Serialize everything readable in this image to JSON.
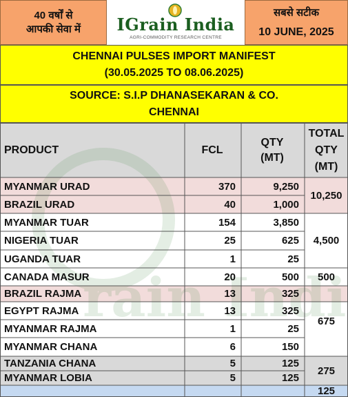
{
  "header": {
    "left_line1": "40 वर्षों से",
    "left_line2": "आपकी सेवा में",
    "logo_title": "IGrain India",
    "logo_subtitle": "AGRI-COMMODITY RESEARCH CENTRE",
    "right_line1": "सबसे सटीक",
    "date": "10 JUNE, 2025"
  },
  "title": {
    "line1": "CHENNAI PULSES IMPORT MANIFEST",
    "line2": "(30.05.2025 TO 08.06.2025)"
  },
  "source": {
    "line1": "SOURCE: S.I.P DHANASEKARAN & CO.",
    "line2": "CHENNAI"
  },
  "table": {
    "headers": {
      "product": "PRODUCT",
      "fcl": "FCL",
      "qty_line1": "QTY",
      "qty_line2": "(MT)",
      "total_line1": "TOTAL",
      "total_line2": "QTY",
      "total_line3": "(MT)"
    },
    "rows": [
      {
        "product": "MYANMAR URAD",
        "fcl": "370",
        "qty": "9,250"
      },
      {
        "product": "BRAZIL URAD",
        "fcl": "40",
        "qty": "1,000"
      },
      {
        "product": "MYANMAR TUAR",
        "fcl": "154",
        "qty": "3,850"
      },
      {
        "product": "NIGERIA TUAR",
        "fcl": "25",
        "qty": "625"
      },
      {
        "product": "UGANDA TUAR",
        "fcl": "1",
        "qty": "25"
      },
      {
        "product": "CANADA MASUR",
        "fcl": "20",
        "qty": "500"
      },
      {
        "product": "BRAZIL RAJMA",
        "fcl": "13",
        "qty": "325"
      },
      {
        "product": "EGYPT RAJMA",
        "fcl": "13",
        "qty": "325"
      },
      {
        "product": "MYANMAR RAJMA",
        "fcl": "1",
        "qty": "25"
      },
      {
        "product": "MYANMAR CHANA",
        "fcl": "6",
        "qty": "150"
      },
      {
        "product": "TANZANIA CHANA",
        "fcl": "5",
        "qty": "125"
      },
      {
        "product": "MYANMAR LOBIA",
        "fcl": "5",
        "qty": "125"
      }
    ],
    "totals": {
      "urad": "10,250",
      "tuar": "4,500",
      "masur": "500",
      "rajma": "675",
      "chana": "275",
      "lobia": "125"
    }
  },
  "colors": {
    "header_orange": "#f7a36b",
    "title_yellow": "#ffff00",
    "header_row_gray": "#d9d9d9",
    "row_pink": "#f2dcdb",
    "row_gray": "#d9d9d9",
    "row_blue": "#c5d9f1",
    "row_white": "#ffffff",
    "logo_green": "#1b5e20"
  },
  "watermark_text": "IGrain India"
}
